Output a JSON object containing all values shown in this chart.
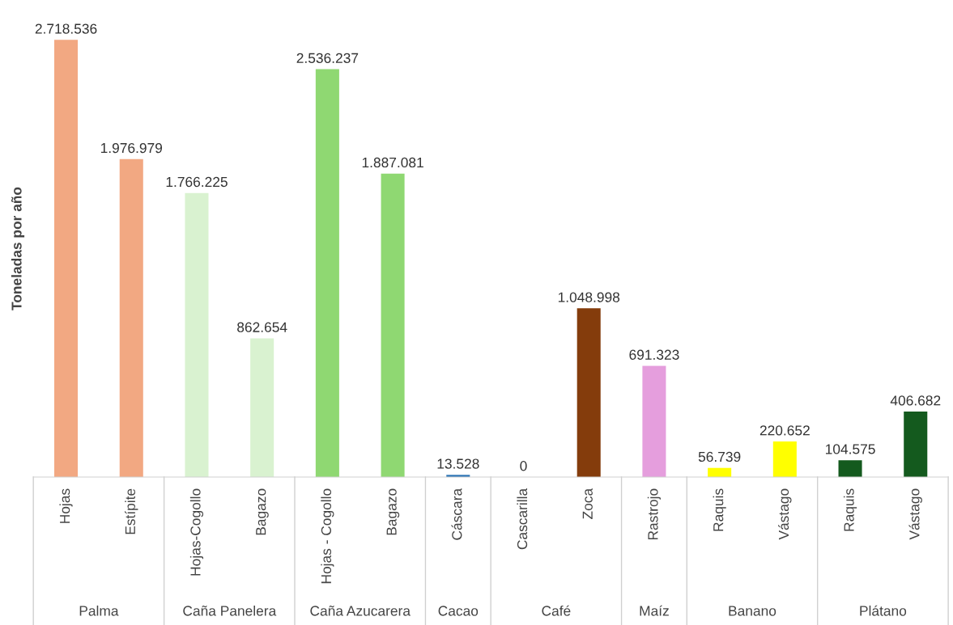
{
  "chart_data": {
    "type": "bar",
    "ylabel": "Toneladas por año",
    "categories": [
      "Hojas",
      "Estípite",
      "Hojas-Cogollo",
      "Bagazo",
      "Hojas - Cogollo",
      "Bagazo",
      "Cáscara",
      "Cascarilla",
      "Zoca",
      "Rastrojo",
      "Raquis",
      "Vástago",
      "Raquis",
      "Vástago"
    ],
    "values": [
      2718536,
      1976979,
      1766225,
      862654,
      2536237,
      1887081,
      13528,
      0,
      1048998,
      691323,
      56739,
      220652,
      104575,
      406682
    ],
    "value_labels": [
      "2.718.536",
      "1.976.979",
      "1.766.225",
      "862.654",
      "2.536.237",
      "1.887.081",
      "13.528",
      "0",
      "1.048.998",
      "691.323",
      "56.739",
      "220.652",
      "104.575",
      "406.682"
    ],
    "colors": [
      "#f2a882",
      "#f2a882",
      "#d9f2d0",
      "#d9f2d0",
      "#8fd872",
      "#8fd872",
      "#2e75b6",
      "#843c0c",
      "#843c0c",
      "#e59edd",
      "#ffff00",
      "#ffff00",
      "#145a1e",
      "#145a1e"
    ],
    "annotations": [
      "Palma",
      "Caña Panelera",
      "Caña Azucarera",
      "Cacao",
      "Café",
      "Maíz",
      "Banano",
      "Plátano"
    ],
    "tick_labels": "x"
  }
}
